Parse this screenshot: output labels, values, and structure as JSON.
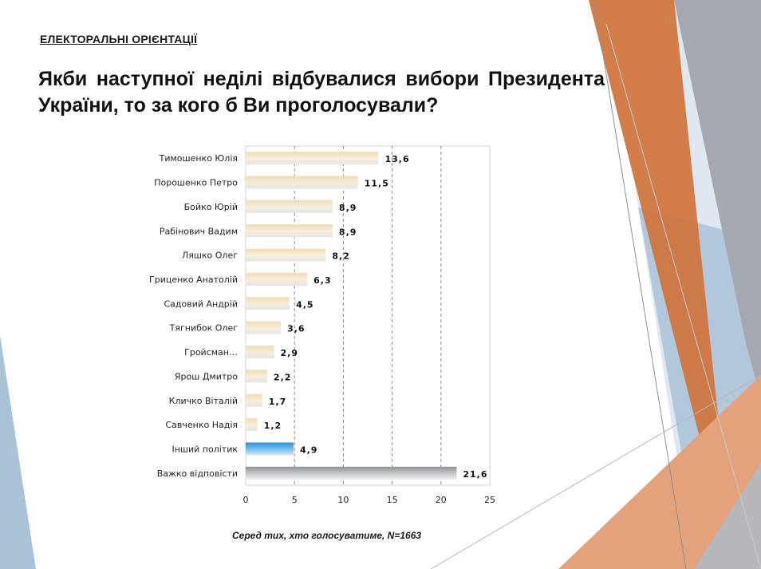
{
  "page": {
    "section_label": "ЕЛЕКТОРАЛЬНІ ОРІЄНТАЦІЇ",
    "title": "Якби наступної неділі відбувалися вибори Президента України, то за кого б Ви проголосували?",
    "footnote": "Серед тих, хто голосуватиме, N=1663"
  },
  "colors": {
    "candidate_bar": "#f1e3c1",
    "other_bar": "#4aa3df",
    "hard_to_say_bar": "#a9abae",
    "deco_orange": "#d0763f",
    "deco_gray": "#a5a8ae",
    "deco_blue": "#a9c2d8"
  },
  "chart_data": {
    "type": "bar",
    "orientation": "horizontal",
    "title": "",
    "xlabel": "",
    "ylabel": "",
    "xlim": [
      0,
      25
    ],
    "x_ticks": [
      0,
      5,
      10,
      15,
      20,
      25
    ],
    "grid": "vertical dashed",
    "legend": "none",
    "categories": [
      "Тимошенко Юлія",
      "Порошенко Петро",
      "Бойко Юрій",
      "Рабінович Вадим",
      "Ляшко Олег",
      "Гриценко Анатолій",
      "Садовий Андрій",
      "Тягнибок Олег",
      "Гройсман…",
      "Ярош Дмитро",
      "Кличко Віталій",
      "Савченко Надія",
      "Інший політик",
      "Важко відповісти"
    ],
    "values": [
      13.6,
      11.5,
      8.9,
      8.9,
      8.2,
      6.3,
      4.5,
      3.6,
      2.9,
      2.2,
      1.7,
      1.2,
      4.9,
      21.6
    ],
    "value_labels": [
      "13,6",
      "11,5",
      "8,9",
      "8,9",
      "8,2",
      "6,3",
      "4,5",
      "3,6",
      "2,9",
      "2,2",
      "1,7",
      "1,2",
      "4,9",
      "21,6"
    ],
    "bar_kinds": [
      "candidate",
      "candidate",
      "candidate",
      "candidate",
      "candidate",
      "candidate",
      "candidate",
      "candidate",
      "candidate",
      "candidate",
      "candidate",
      "candidate",
      "other",
      "hard_to_say"
    ]
  }
}
